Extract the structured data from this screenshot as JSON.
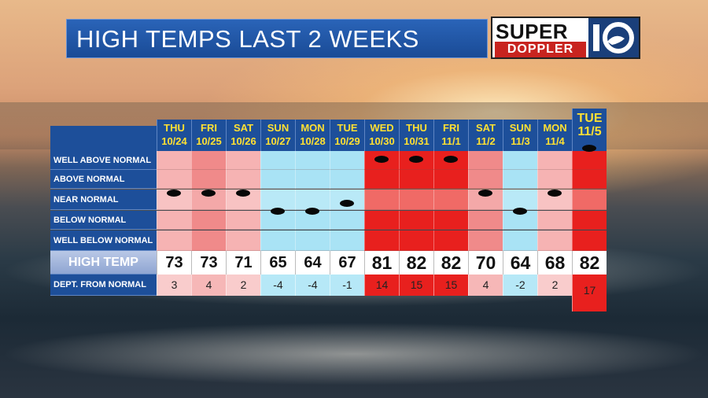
{
  "title": "HIGH TEMPS LAST 2 WEEKS",
  "logo": {
    "line1": "SUPER",
    "line2": "DOPPLER",
    "mark": "10"
  },
  "row_labels": {
    "well_above": "WELL ABOVE NORMAL",
    "above": "ABOVE NORMAL",
    "near": "NEAR NORMAL",
    "below": "BELOW NORMAL",
    "well_below": "WELL BELOW NORMAL",
    "high_temp": "HIGH TEMP",
    "dept": "DEPT. FROM NORMAL"
  },
  "colors": {
    "cool": "#a9e3f5",
    "mild_warm": "#f6b3b3",
    "warm": "#f08a8a",
    "hot": "#e8201e",
    "header_blue": "#1d4f9a",
    "day_text": "#ffe033"
  },
  "chart_data": {
    "type": "table",
    "categories": [
      "WELL ABOVE NORMAL",
      "ABOVE NORMAL",
      "NEAR NORMAL",
      "BELOW NORMAL",
      "WELL BELOW NORMAL"
    ],
    "days": [
      {
        "dow": "THU",
        "date": "10/24",
        "high": 73,
        "dept": 3,
        "category": "NEAR NORMAL",
        "style": "mild_warm"
      },
      {
        "dow": "FRI",
        "date": "10/25",
        "high": 73,
        "dept": 4,
        "category": "NEAR NORMAL",
        "style": "warm"
      },
      {
        "dow": "SAT",
        "date": "10/26",
        "high": 71,
        "dept": 2,
        "category": "NEAR NORMAL",
        "style": "mild_warm"
      },
      {
        "dow": "SUN",
        "date": "10/27",
        "high": 65,
        "dept": -4,
        "category": "BELOW NORMAL",
        "style": "cool"
      },
      {
        "dow": "MON",
        "date": "10/28",
        "high": 64,
        "dept": -4,
        "category": "BELOW NORMAL",
        "style": "cool"
      },
      {
        "dow": "TUE",
        "date": "10/29",
        "high": 67,
        "dept": -1,
        "category": "NEAR NORMAL",
        "style": "cool"
      },
      {
        "dow": "WED",
        "date": "10/30",
        "high": 81,
        "dept": 14,
        "category": "WELL ABOVE NORMAL",
        "style": "hot"
      },
      {
        "dow": "THU",
        "date": "10/31",
        "high": 82,
        "dept": 15,
        "category": "WELL ABOVE NORMAL",
        "style": "hot"
      },
      {
        "dow": "FRI",
        "date": "11/1",
        "high": 82,
        "dept": 15,
        "category": "WELL ABOVE NORMAL",
        "style": "hot"
      },
      {
        "dow": "SAT",
        "date": "11/2",
        "high": 70,
        "dept": 4,
        "category": "NEAR NORMAL",
        "style": "warm"
      },
      {
        "dow": "SUN",
        "date": "11/3",
        "high": 64,
        "dept": -2,
        "category": "BELOW NORMAL",
        "style": "cool"
      },
      {
        "dow": "MON",
        "date": "11/4",
        "high": 68,
        "dept": 2,
        "category": "NEAR NORMAL",
        "style": "mild_warm"
      },
      {
        "dow": "TUE",
        "date": "11/5",
        "high": 82,
        "dept": 17,
        "category": "WELL ABOVE NORMAL",
        "style": "hot"
      }
    ]
  }
}
